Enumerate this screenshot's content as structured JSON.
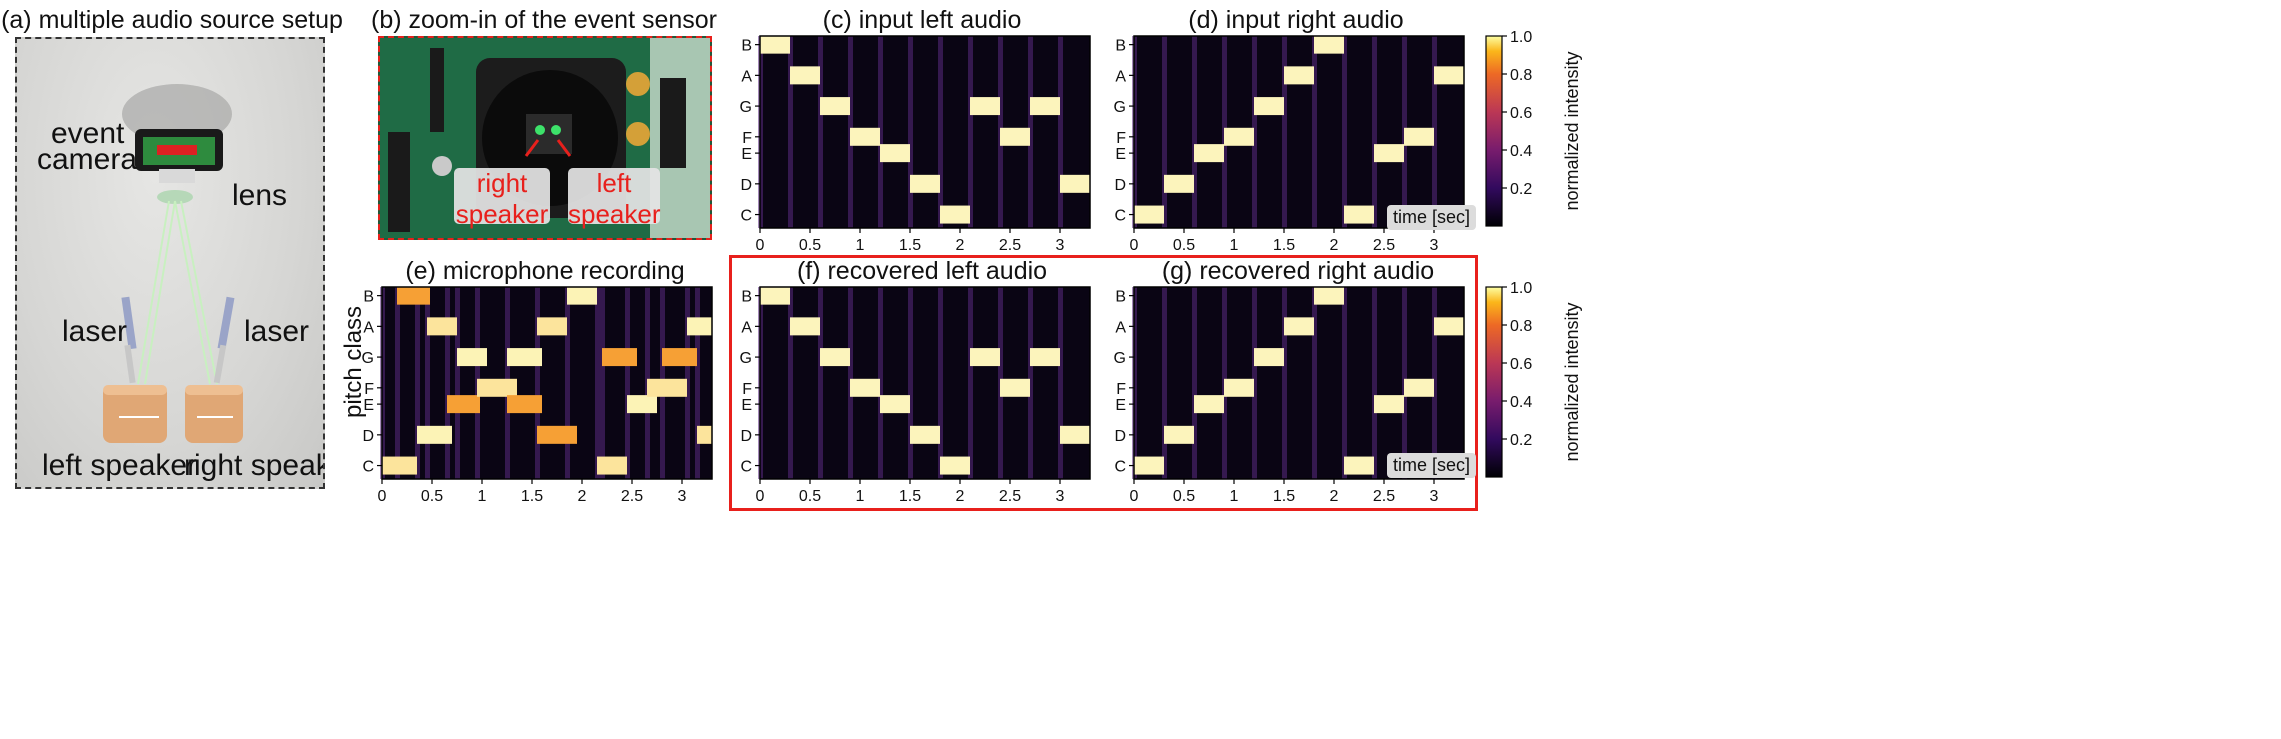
{
  "panels": {
    "a": {
      "title": "(a) multiple audio source setup",
      "labels": {
        "event_camera_line1": "event",
        "event_camera_line2": "camera",
        "lens": "lens",
        "laser_left": "laser",
        "laser_right": "laser",
        "left_speaker": "left speaker",
        "right_speaker": "right speaker"
      }
    },
    "b": {
      "title": "(b) zoom-in of the event sensor",
      "labels": {
        "right_line1": "right",
        "right_line2": "speaker",
        "left_line1": "left",
        "left_line2": "speaker"
      }
    },
    "c": {
      "title": "(c) input left audio"
    },
    "d": {
      "title": "(d) input right audio",
      "badge": "time [sec]"
    },
    "e": {
      "title": "(e) microphone recording",
      "ylabel": "pitch class"
    },
    "f": {
      "title": "(f) recovered left audio"
    },
    "g": {
      "title": "(g) recovered right audio",
      "badge": "time [sec]"
    }
  },
  "colorbar": {
    "label": "normalized intensity",
    "ticks": [
      "1.0",
      "0.8",
      "0.6",
      "0.4",
      "0.2"
    ]
  },
  "chart_data": {
    "type": "heatmap",
    "pitch_labels": [
      "B",
      "A",
      "G",
      "F",
      "E",
      "D",
      "C"
    ],
    "x_ticks": [
      "0",
      "0.5",
      "1",
      "1.5",
      "2",
      "2.5",
      "3"
    ],
    "xlim": [
      0,
      3.3
    ],
    "colormap": "inferno",
    "notes_left": [
      {
        "pitch": "B",
        "start": 0.0,
        "end": 0.3
      },
      {
        "pitch": "A",
        "start": 0.3,
        "end": 0.6
      },
      {
        "pitch": "G",
        "start": 0.6,
        "end": 0.9
      },
      {
        "pitch": "F",
        "start": 0.9,
        "end": 1.2
      },
      {
        "pitch": "E",
        "start": 1.2,
        "end": 1.5
      },
      {
        "pitch": "D",
        "start": 1.5,
        "end": 1.8
      },
      {
        "pitch": "C",
        "start": 1.8,
        "end": 2.1
      },
      {
        "pitch": "G",
        "start": 2.1,
        "end": 2.4
      },
      {
        "pitch": "F",
        "start": 2.4,
        "end": 2.7
      },
      {
        "pitch": "G",
        "start": 2.7,
        "end": 3.0
      },
      {
        "pitch": "D",
        "start": 3.0,
        "end": 3.3
      }
    ],
    "notes_right": [
      {
        "pitch": "C",
        "start": 0.0,
        "end": 0.3
      },
      {
        "pitch": "D",
        "start": 0.3,
        "end": 0.6
      },
      {
        "pitch": "E",
        "start": 0.6,
        "end": 0.9
      },
      {
        "pitch": "F",
        "start": 0.9,
        "end": 1.2
      },
      {
        "pitch": "G",
        "start": 1.2,
        "end": 1.5
      },
      {
        "pitch": "A",
        "start": 1.5,
        "end": 1.8
      },
      {
        "pitch": "B",
        "start": 1.8,
        "end": 2.1
      },
      {
        "pitch": "C",
        "start": 2.1,
        "end": 2.4
      },
      {
        "pitch": "E",
        "start": 2.4,
        "end": 2.7
      },
      {
        "pitch": "F",
        "start": 2.7,
        "end": 3.0
      },
      {
        "pitch": "A",
        "start": 3.0,
        "end": 3.3
      }
    ],
    "notes_mic": [
      {
        "pitch": "C",
        "start": 0.0,
        "end": 0.35
      },
      {
        "pitch": "B",
        "start": 0.15,
        "end": 0.48
      },
      {
        "pitch": "D",
        "start": 0.35,
        "end": 0.7
      },
      {
        "pitch": "A",
        "start": 0.45,
        "end": 0.75
      },
      {
        "pitch": "E",
        "start": 0.65,
        "end": 0.98
      },
      {
        "pitch": "G",
        "start": 0.75,
        "end": 1.05
      },
      {
        "pitch": "F",
        "start": 0.95,
        "end": 1.35
      },
      {
        "pitch": "E",
        "start": 1.25,
        "end": 1.6
      },
      {
        "pitch": "G",
        "start": 1.25,
        "end": 1.6
      },
      {
        "pitch": "A",
        "start": 1.55,
        "end": 1.85
      },
      {
        "pitch": "D",
        "start": 1.55,
        "end": 1.95
      },
      {
        "pitch": "B",
        "start": 1.85,
        "end": 2.15
      },
      {
        "pitch": "C",
        "start": 2.15,
        "end": 2.45
      },
      {
        "pitch": "G",
        "start": 2.2,
        "end": 2.55
      },
      {
        "pitch": "E",
        "start": 2.45,
        "end": 2.75
      },
      {
        "pitch": "F",
        "start": 2.65,
        "end": 3.05
      },
      {
        "pitch": "G",
        "start": 2.8,
        "end": 3.15
      },
      {
        "pitch": "A",
        "start": 3.05,
        "end": 3.3
      },
      {
        "pitch": "D",
        "start": 3.15,
        "end": 3.3
      }
    ]
  }
}
